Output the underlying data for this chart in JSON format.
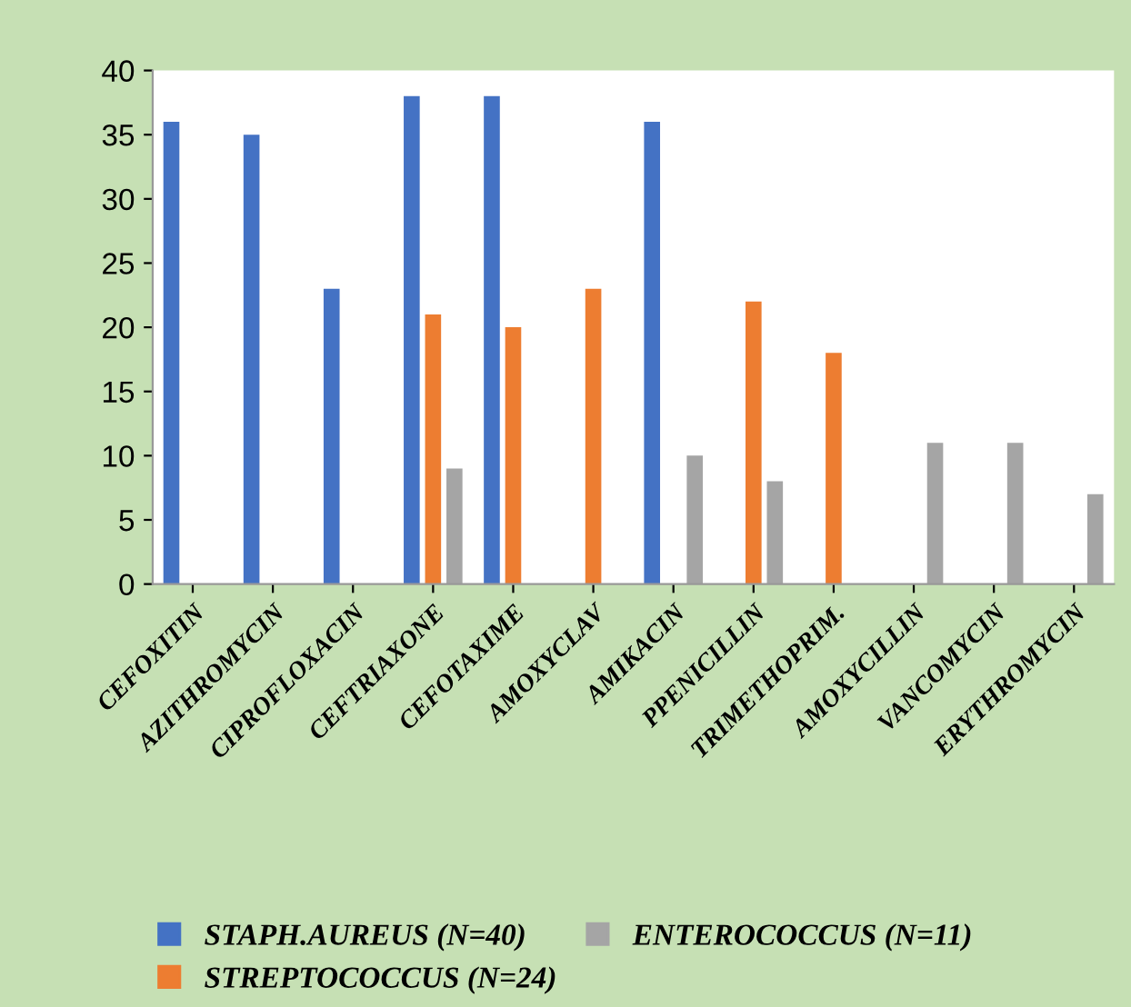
{
  "chart_data": {
    "type": "bar",
    "categories": [
      "CEFOXITIN",
      "AZITHROMYCIN",
      "CIPROFLOXACIN",
      "CEFTRIAXONE",
      "CEFOTAXIME",
      "AMOXYCLAV",
      "AMIKACIN",
      "PPENICILLIN",
      "TRIMETHOPRIM.",
      "AMOXYCILLIN",
      "VANCOMYCIN",
      "ERYTHROMYCIN"
    ],
    "series": [
      {
        "name": "STAPH.AUREUS (N=40)",
        "color": "#4472c4",
        "values": [
          36,
          35,
          23,
          38,
          38,
          null,
          36,
          null,
          null,
          null,
          null,
          null
        ]
      },
      {
        "name": "STREPTOCOCCUS (N=24)",
        "color": "#ed7d31",
        "values": [
          null,
          null,
          null,
          21,
          20,
          23,
          null,
          22,
          18,
          null,
          null,
          null
        ]
      },
      {
        "name": "ENTEROCOCCUS (N=11)",
        "color": "#a5a5a5",
        "values": [
          null,
          null,
          null,
          9,
          null,
          null,
          10,
          8,
          null,
          11,
          11,
          7
        ]
      }
    ],
    "ylim": [
      0,
      40
    ],
    "yticks": [
      0,
      5,
      10,
      15,
      20,
      25,
      30,
      35,
      40
    ],
    "grid": false,
    "legend": "bottom"
  }
}
